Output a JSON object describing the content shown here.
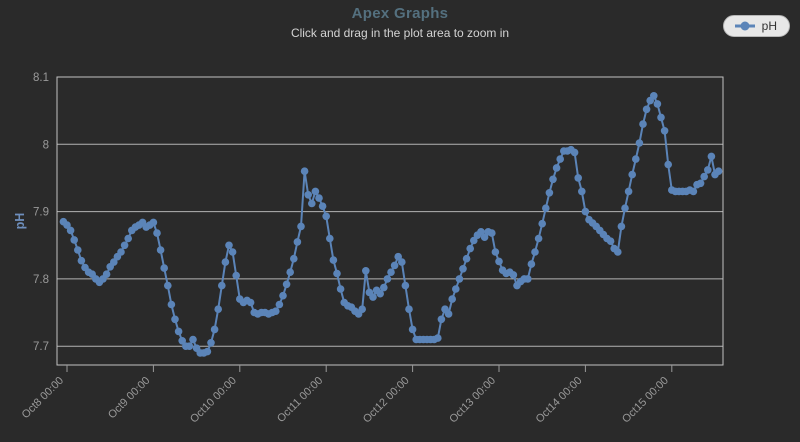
{
  "header": {
    "title": "Apex Graphs",
    "subtitle": "Click and drag in the plot area to zoom in"
  },
  "legend": {
    "items": [
      {
        "label": "pH",
        "color": "#5b84b8"
      }
    ]
  },
  "chart_data": {
    "type": "line",
    "title": "Apex Graphs",
    "subtitle": "Click and drag in the plot area to zoom in",
    "grid": true,
    "legend_position": "top-right",
    "x_axis": {
      "tick_labels": [
        "Oct8 00:00",
        "Oct9 00:00",
        "Oct10 00:00",
        "Oct11 00:00",
        "Oct12 00:00",
        "Oct13 00:00",
        "Oct14 00:00",
        "Oct15 00:00"
      ],
      "tick_hours": [
        0,
        24,
        48,
        72,
        96,
        120,
        144,
        168
      ],
      "series_start_hour": -1,
      "interval_hours": 1
    },
    "y_axis": {
      "title": "pH",
      "tick_labels": [
        "8.1",
        "8",
        "7.9",
        "7.8",
        "7.7"
      ],
      "tick_values": [
        8.1,
        8.0,
        7.9,
        7.8,
        7.7
      ],
      "min": 7.67,
      "max": 8.1
    },
    "style": {
      "grid_color": "#b3b3b3",
      "border_color": "#c2c2c2",
      "axis_label_color": "#9a9a9a",
      "y_title_color": "#6e8fbd"
    },
    "series": [
      {
        "name": "pH",
        "color": "#5b84b8",
        "values": [
          7.885,
          7.88,
          7.872,
          7.858,
          7.843,
          7.827,
          7.817,
          7.81,
          7.807,
          7.8,
          7.795,
          7.8,
          7.807,
          7.818,
          7.825,
          7.833,
          7.84,
          7.85,
          7.86,
          7.872,
          7.877,
          7.88,
          7.884,
          7.877,
          7.88,
          7.884,
          7.868,
          7.843,
          7.816,
          7.79,
          7.762,
          7.74,
          7.722,
          7.708,
          7.7,
          7.7,
          7.71,
          7.697,
          7.69,
          7.69,
          7.692,
          7.705,
          7.725,
          7.755,
          7.79,
          7.825,
          7.85,
          7.84,
          7.805,
          7.77,
          7.765,
          7.768,
          7.765,
          7.75,
          7.748,
          7.75,
          7.75,
          7.748,
          7.75,
          7.752,
          7.762,
          7.775,
          7.792,
          7.81,
          7.83,
          7.855,
          7.878,
          7.96,
          7.925,
          7.912,
          7.93,
          7.92,
          7.908,
          7.893,
          7.86,
          7.828,
          7.808,
          7.785,
          7.765,
          7.76,
          7.758,
          7.752,
          7.748,
          7.755,
          7.812,
          7.78,
          7.773,
          7.783,
          7.778,
          7.787,
          7.8,
          7.81,
          7.82,
          7.833,
          7.825,
          7.79,
          7.755,
          7.725,
          7.71,
          7.71,
          7.71,
          7.71,
          7.71,
          7.71,
          7.712,
          7.74,
          7.755,
          7.748,
          7.77,
          7.785,
          7.8,
          7.815,
          7.83,
          7.845,
          7.857,
          7.865,
          7.87,
          7.862,
          7.87,
          7.868,
          7.84,
          7.826,
          7.813,
          7.808,
          7.81,
          7.806,
          7.79,
          7.796,
          7.8,
          7.8,
          7.822,
          7.84,
          7.86,
          7.882,
          7.905,
          7.928,
          7.948,
          7.965,
          7.978,
          7.99,
          7.99,
          7.992,
          7.988,
          7.95,
          7.93,
          7.9,
          7.888,
          7.883,
          7.878,
          7.872,
          7.866,
          7.86,
          7.856,
          7.845,
          7.84,
          7.878,
          7.905,
          7.93,
          7.955,
          7.978,
          8.002,
          8.03,
          8.052,
          8.065,
          8.072,
          8.06,
          8.04,
          8.02,
          7.97,
          7.932,
          7.93,
          7.93,
          7.93,
          7.93,
          7.932,
          7.93,
          7.94,
          7.942,
          7.952,
          7.962,
          7.982,
          7.955,
          7.96
        ]
      }
    ]
  }
}
